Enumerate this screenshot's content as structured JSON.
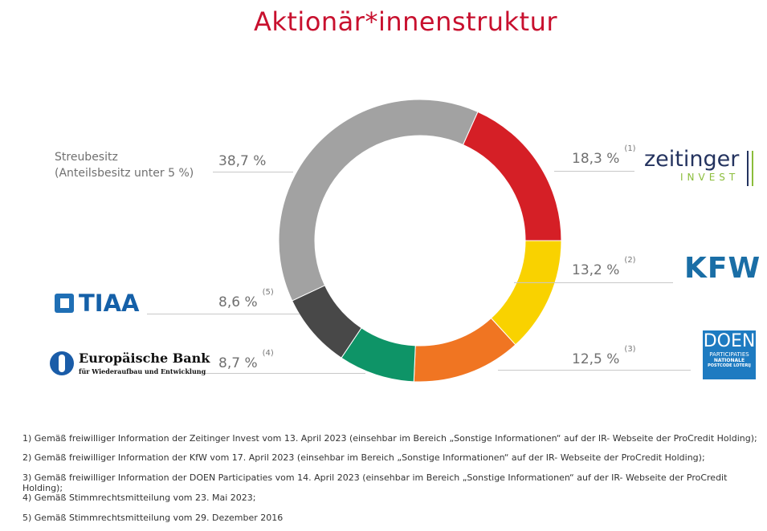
{
  "title": "Aktionär*innenstruktur",
  "chart_data": {
    "type": "pie",
    "donut": true,
    "title": "Aktionär*innenstruktur",
    "slices": [
      {
        "label": "Zeitinger Invest",
        "value": 18.3,
        "display": "18,3 %",
        "footnote": "(1)",
        "color": "#d51f26"
      },
      {
        "label": "KfW",
        "value": 13.2,
        "display": "13,2 %",
        "footnote": "(2)",
        "color": "#f9d200"
      },
      {
        "label": "DOEN Participaties",
        "value": 12.5,
        "display": "12,5 %",
        "footnote": "(3)",
        "color": "#f07522"
      },
      {
        "label": "Europäische Bank für Wiederaufbau und Entwicklung",
        "value": 8.7,
        "display": "8,7 %",
        "footnote": "(4)",
        "color": "#0e9467"
      },
      {
        "label": "TIAA",
        "value": 8.6,
        "display": "8,6 %",
        "footnote": "(5)",
        "color": "#484848"
      },
      {
        "label": "Streubesitz (Anteilsbesitz unter 5 %)",
        "value": 38.7,
        "display": "38,7 %",
        "footnote": "",
        "color": "#a2a2a2"
      }
    ]
  },
  "streubesitz": {
    "line1": "Streubesitz",
    "line2": "(Anteilsbesitz unter 5 %)"
  },
  "logos": {
    "zeitinger": {
      "main": "zeitinger",
      "sub": "INVEST"
    },
    "kfw": "KFW",
    "tiaa": "TIAA",
    "ebrd": {
      "main": "Europäische Bank",
      "sub": "für Wiederaufbau und Entwicklung"
    },
    "doen": {
      "main": "DOEN",
      "sub": "PARTICIPATIES",
      "sub2": "NATIONALE",
      "sub3": "POSTCODE LOTERIJ"
    }
  },
  "footnotes": [
    "1) Gemäß freiwilliger Information der Zeitinger Invest vom 13. April 2023 (einsehbar im Bereich „Sonstige Informationen“ auf der IR- Webseite der ProCredit Holding);",
    "2) Gemäß freiwilliger Information der KfW vom 17. April 2023 (einsehbar im Bereich „Sonstige Informationen“ auf der IR- Webseite der ProCredit Holding);",
    "3) Gemäß freiwilliger Information der DOEN Participaties vom 14. April 2023 (einsehbar im Bereich „Sonstige Informationen“ auf der IR- Webseite der ProCredit Holding);",
    "4) Gemäß Stimmrechtsmitteilung vom 23. Mai 2023;",
    "5) Gemäß Stimmrechtsmitteilung vom 29. Dezember 2016"
  ]
}
